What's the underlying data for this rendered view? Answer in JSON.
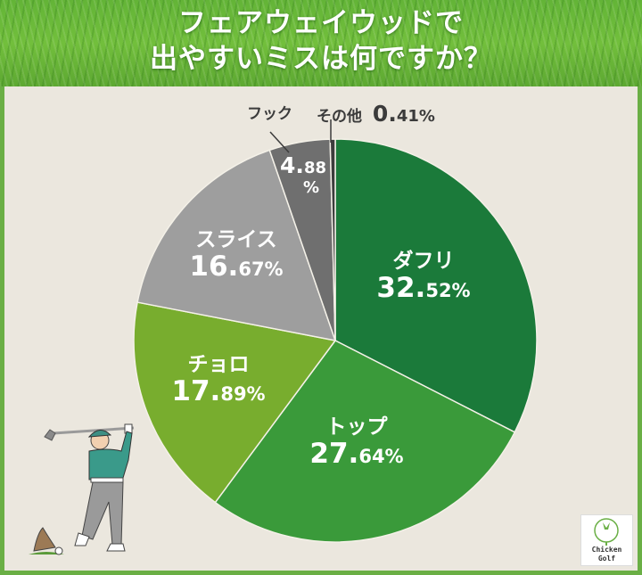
{
  "header": {
    "title_line1": "フェアウェイウッドで",
    "title_line2": "出やすいミスは何ですか？"
  },
  "colors": {
    "frame": "#6aaf45",
    "panel": "#ebe7de",
    "dafuri": "#1b7a3a",
    "top": "#3a9a3a",
    "choro": "#78ad2e",
    "slice": "#9e9e9e",
    "hook": "#6f6f6f",
    "other": "#3c3c3c"
  },
  "labels": {
    "dafuri": {
      "name": "ダフリ",
      "int": "32.",
      "dec": "52%"
    },
    "top": {
      "name": "トップ",
      "int": "27.",
      "dec": "64%"
    },
    "choro": {
      "name": "チョロ",
      "int": "17.",
      "dec": "89%"
    },
    "slice": {
      "name": "スライス",
      "int": "16.",
      "dec": "67%"
    },
    "hook": {
      "name": "フック",
      "int": "4.",
      "dec": "88",
      "pct": "%"
    },
    "other": {
      "name": "その他",
      "int": "0.",
      "dec": "41%"
    }
  },
  "logo": {
    "line1": "Chicken",
    "line2": "Golf"
  },
  "chart_data": {
    "type": "pie",
    "title": "フェアウェイウッドで出やすいミスは何ですか？",
    "categories": [
      "ダフリ",
      "トップ",
      "チョロ",
      "スライス",
      "フック",
      "その他"
    ],
    "values": [
      32.52,
      27.64,
      17.89,
      16.67,
      4.88,
      0.41
    ],
    "unit": "%",
    "start_angle": "12 o'clock, clockwise",
    "colors": [
      "#1b7a3a",
      "#3a9a3a",
      "#78ad2e",
      "#9e9e9e",
      "#6f6f6f",
      "#3c3c3c"
    ],
    "legend": "none (labels on slices)"
  }
}
